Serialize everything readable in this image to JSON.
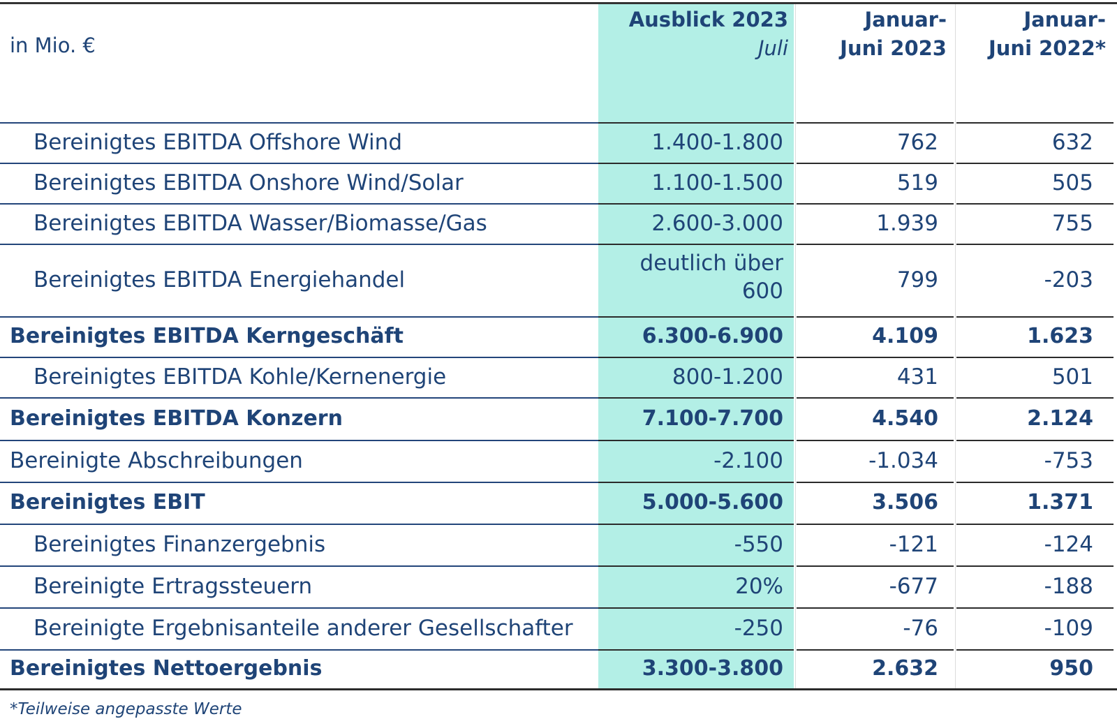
{
  "table": {
    "unit_label": "in Mio. €",
    "columns": [
      {
        "title": "Ausblick 2023",
        "subtitle": "Juli"
      },
      {
        "title_line1": "Januar-",
        "title_line2": "Juni 2023"
      },
      {
        "title_line1": "Januar-",
        "title_line2": "Juni 2022*"
      }
    ],
    "highlight_color": "#b3efe6",
    "text_color": "#1f4477",
    "rows": [
      {
        "label": "Bereinigtes EBITDA Offshore Wind",
        "bold": false,
        "outlook": "1.400-1.800",
        "h1_2023": "762",
        "h1_2022": "632"
      },
      {
        "label": "Bereinigtes EBITDA Onshore Wind/Solar",
        "bold": false,
        "outlook": "1.100-1.500",
        "h1_2023": "519",
        "h1_2022": "505"
      },
      {
        "label": "Bereinigtes EBITDA Wasser/Biomasse/Gas",
        "bold": false,
        "outlook": "2.600-3.000",
        "h1_2023": "1.939",
        "h1_2022": "755"
      },
      {
        "label": "Bereinigtes EBITDA Energiehandel",
        "bold": false,
        "outlook_line1": "deutlich über",
        "outlook_line2": "600",
        "h1_2023": "799",
        "h1_2022": "-203"
      },
      {
        "label": "Bereinigtes EBITDA Kerngeschäft",
        "bold": true,
        "outlook": "6.300-6.900",
        "h1_2023": "4.109",
        "h1_2022": "1.623"
      },
      {
        "label": "Bereinigtes EBITDA Kohle/Kernenergie",
        "bold": false,
        "outlook": "800-1.200",
        "h1_2023": "431",
        "h1_2022": "501"
      },
      {
        "label": "Bereinigtes EBITDA Konzern",
        "bold": true,
        "outlook": "7.100-7.700",
        "h1_2023": "4.540",
        "h1_2022": "2.124"
      },
      {
        "label": "Bereinigte Abschreibungen",
        "bold": false,
        "outlook": "-2.100",
        "h1_2023": "-1.034",
        "h1_2022": "-753"
      },
      {
        "label": "Bereinigtes EBIT",
        "bold": true,
        "outlook": "5.000-5.600",
        "h1_2023": "3.506",
        "h1_2022": "1.371"
      },
      {
        "label": "Bereinigtes Finanzergebnis",
        "bold": false,
        "outlook": "-550",
        "h1_2023": "-121",
        "h1_2022": "-124"
      },
      {
        "label": "Bereinigte Ertragssteuern",
        "bold": false,
        "outlook": "20%",
        "h1_2023": "-677",
        "h1_2022": "-188"
      },
      {
        "label": "Bereinigte Ergebnisanteile anderer Gesellschafter",
        "bold": false,
        "outlook": "-250",
        "h1_2023": "-76",
        "h1_2022": "-109"
      },
      {
        "label": "Bereinigtes Nettoergebnis",
        "bold": true,
        "outlook": "3.300-3.800",
        "h1_2023": "2.632",
        "h1_2022": "950"
      }
    ],
    "footnote": "*Teilweise angepasste Werte"
  }
}
